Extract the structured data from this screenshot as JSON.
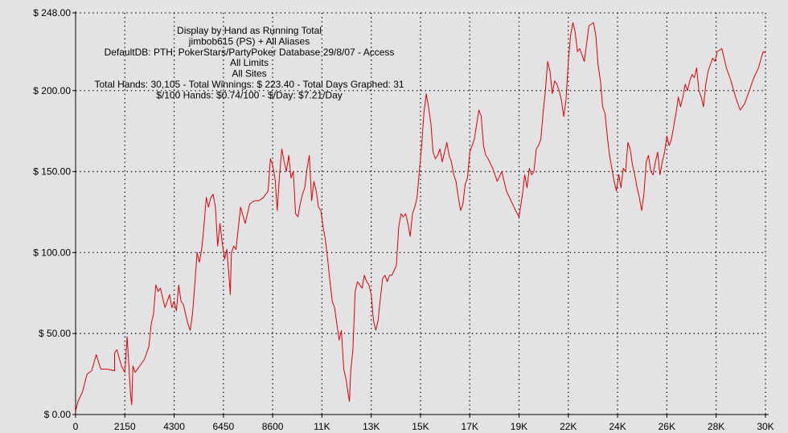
{
  "chart_data": {
    "type": "line",
    "title_lines": [
      "Display by Hand as Running Total",
      "jimbob615 (PS) + All Aliases",
      "DefaultDB: PTH: PokerStars/PartyPoker Database 29/8/07 - Access",
      "All Limits",
      "All Sites",
      "Total Hands: 30,105 - Total Winnings: $ 223.40 - Total Days Graphed: 31",
      "$/100 Hands: $0.74/100 - $/Day: $7.21/Day"
    ],
    "xlabel": "",
    "ylabel": "",
    "xlim": [
      0,
      30105
    ],
    "ylim": [
      0,
      248
    ],
    "x_ticks": [
      {
        "value": 0,
        "label": "0"
      },
      {
        "value": 2150,
        "label": "2150"
      },
      {
        "value": 4300,
        "label": "4300"
      },
      {
        "value": 6450,
        "label": "6450"
      },
      {
        "value": 8600,
        "label": "8600"
      },
      {
        "value": 10750,
        "label": "11K"
      },
      {
        "value": 12900,
        "label": "13K"
      },
      {
        "value": 15050,
        "label": "15K"
      },
      {
        "value": 17200,
        "label": "17K"
      },
      {
        "value": 19350,
        "label": "19K"
      },
      {
        "value": 21500,
        "label": "22K"
      },
      {
        "value": 23650,
        "label": "24K"
      },
      {
        "value": 25800,
        "label": "26K"
      },
      {
        "value": 27950,
        "label": "28K"
      },
      {
        "value": 30105,
        "label": "30K"
      }
    ],
    "y_ticks": [
      {
        "value": 0,
        "label": "$ 0.00"
      },
      {
        "value": 50,
        "label": "$ 50.00"
      },
      {
        "value": 100,
        "label": "$ 100.00"
      },
      {
        "value": 150,
        "label": "$ 150.00"
      },
      {
        "value": 200,
        "label": "$ 200.00"
      },
      {
        "value": 248,
        "label": "$ 248.00"
      }
    ],
    "grid": true,
    "series": [
      {
        "color": "#e00000",
        "points": [
          [
            0,
            2
          ],
          [
            100,
            8
          ],
          [
            300,
            14
          ],
          [
            500,
            25
          ],
          [
            700,
            27
          ],
          [
            900,
            37
          ],
          [
            1100,
            28
          ],
          [
            1400,
            28
          ],
          [
            1700,
            27
          ],
          [
            1700,
            38
          ],
          [
            1800,
            40
          ],
          [
            2000,
            30
          ],
          [
            2150,
            26
          ],
          [
            2250,
            48
          ],
          [
            2300,
            36
          ],
          [
            2400,
            12
          ],
          [
            2450,
            6
          ],
          [
            2500,
            30
          ],
          [
            2600,
            26
          ],
          [
            2800,
            30
          ],
          [
            3000,
            34
          ],
          [
            3200,
            42
          ],
          [
            3300,
            56
          ],
          [
            3400,
            62
          ],
          [
            3500,
            80
          ],
          [
            3600,
            76
          ],
          [
            3700,
            78
          ],
          [
            3800,
            72
          ],
          [
            3900,
            66
          ],
          [
            4000,
            70
          ],
          [
            4100,
            74
          ],
          [
            4200,
            66
          ],
          [
            4300,
            70
          ],
          [
            4400,
            64
          ],
          [
            4500,
            80
          ],
          [
            4600,
            70
          ],
          [
            4700,
            68
          ],
          [
            4800,
            62
          ],
          [
            4900,
            56
          ],
          [
            5000,
            52
          ],
          [
            5100,
            62
          ],
          [
            5200,
            80
          ],
          [
            5300,
            100
          ],
          [
            5400,
            94
          ],
          [
            5500,
            102
          ],
          [
            5600,
            116
          ],
          [
            5700,
            134
          ],
          [
            5800,
            128
          ],
          [
            5900,
            134
          ],
          [
            6000,
            136
          ],
          [
            6100,
            128
          ],
          [
            6200,
            104
          ],
          [
            6300,
            118
          ],
          [
            6400,
            106
          ],
          [
            6500,
            96
          ],
          [
            6600,
            102
          ],
          [
            6700,
            84
          ],
          [
            6750,
            74
          ],
          [
            6800,
            100
          ],
          [
            6900,
            104
          ],
          [
            7000,
            102
          ],
          [
            7200,
            128
          ],
          [
            7400,
            118
          ],
          [
            7600,
            130
          ],
          [
            7800,
            132
          ],
          [
            8000,
            132
          ],
          [
            8200,
            134
          ],
          [
            8400,
            138
          ],
          [
            8500,
            158
          ],
          [
            8600,
            154
          ],
          [
            8700,
            146
          ],
          [
            8800,
            126
          ],
          [
            8900,
            148
          ],
          [
            9000,
            164
          ],
          [
            9100,
            156
          ],
          [
            9200,
            150
          ],
          [
            9300,
            160
          ],
          [
            9400,
            146
          ],
          [
            9500,
            150
          ],
          [
            9600,
            124
          ],
          [
            9700,
            122
          ],
          [
            9800,
            130
          ],
          [
            9900,
            136
          ],
          [
            10000,
            140
          ],
          [
            10100,
            152
          ],
          [
            10200,
            160
          ],
          [
            10300,
            132
          ],
          [
            10400,
            144
          ],
          [
            10500,
            138
          ],
          [
            10600,
            128
          ],
          [
            10700,
            126
          ],
          [
            10800,
            116
          ],
          [
            10900,
            108
          ],
          [
            11000,
            96
          ],
          [
            11100,
            82
          ],
          [
            11200,
            70
          ],
          [
            11300,
            66
          ],
          [
            11400,
            56
          ],
          [
            11500,
            46
          ],
          [
            11600,
            52
          ],
          [
            11700,
            28
          ],
          [
            11800,
            22
          ],
          [
            11900,
            12
          ],
          [
            11950,
            8
          ],
          [
            12000,
            26
          ],
          [
            12100,
            40
          ],
          [
            12200,
            76
          ],
          [
            12300,
            82
          ],
          [
            12400,
            80
          ],
          [
            12500,
            78
          ],
          [
            12600,
            86
          ],
          [
            12700,
            82
          ],
          [
            12800,
            80
          ],
          [
            12900,
            74
          ],
          [
            13000,
            58
          ],
          [
            13100,
            52
          ],
          [
            13200,
            58
          ],
          [
            13300,
            72
          ],
          [
            13400,
            84
          ],
          [
            13500,
            86
          ],
          [
            13600,
            82
          ],
          [
            13700,
            86
          ],
          [
            13800,
            86
          ],
          [
            14000,
            92
          ],
          [
            14100,
            116
          ],
          [
            14200,
            124
          ],
          [
            14300,
            122
          ],
          [
            14400,
            124
          ],
          [
            14500,
            118
          ],
          [
            14600,
            110
          ],
          [
            14700,
            124
          ],
          [
            14800,
            128
          ],
          [
            14900,
            134
          ],
          [
            15000,
            150
          ],
          [
            15100,
            166
          ],
          [
            15200,
            186
          ],
          [
            15300,
            198
          ],
          [
            15400,
            190
          ],
          [
            15500,
            180
          ],
          [
            15600,
            162
          ],
          [
            15700,
            158
          ],
          [
            15800,
            160
          ],
          [
            15900,
            164
          ],
          [
            16000,
            156
          ],
          [
            16100,
            162
          ],
          [
            16200,
            168
          ],
          [
            16300,
            160
          ],
          [
            16400,
            156
          ],
          [
            16500,
            148
          ],
          [
            16600,
            144
          ],
          [
            16700,
            134
          ],
          [
            16800,
            126
          ],
          [
            16900,
            130
          ],
          [
            17000,
            142
          ],
          [
            17100,
            146
          ],
          [
            17200,
            162
          ],
          [
            17400,
            170
          ],
          [
            17600,
            188
          ],
          [
            17700,
            184
          ],
          [
            17800,
            166
          ],
          [
            17900,
            160
          ],
          [
            18000,
            158
          ],
          [
            18200,
            152
          ],
          [
            18400,
            144
          ],
          [
            18600,
            150
          ],
          [
            18800,
            138
          ],
          [
            19000,
            132
          ],
          [
            19200,
            126
          ],
          [
            19350,
            122
          ],
          [
            19500,
            136
          ],
          [
            19600,
            148
          ],
          [
            19700,
            140
          ],
          [
            19800,
            152
          ],
          [
            19900,
            148
          ],
          [
            20000,
            150
          ],
          [
            20100,
            164
          ],
          [
            20200,
            166
          ],
          [
            20300,
            170
          ],
          [
            20400,
            186
          ],
          [
            20500,
            200
          ],
          [
            20600,
            218
          ],
          [
            20700,
            212
          ],
          [
            20800,
            198
          ],
          [
            20900,
            206
          ],
          [
            21000,
            204
          ],
          [
            21100,
            200
          ],
          [
            21200,
            194
          ],
          [
            21300,
            184
          ],
          [
            21400,
            194
          ],
          [
            21500,
            218
          ],
          [
            21600,
            234
          ],
          [
            21700,
            242
          ],
          [
            21800,
            236
          ],
          [
            21900,
            224
          ],
          [
            22000,
            226
          ],
          [
            22200,
            218
          ],
          [
            22400,
            240
          ],
          [
            22600,
            242
          ],
          [
            22700,
            234
          ],
          [
            22800,
            216
          ],
          [
            22900,
            206
          ],
          [
            23000,
            190
          ],
          [
            23100,
            186
          ],
          [
            23200,
            172
          ],
          [
            23300,
            160
          ],
          [
            23400,
            152
          ],
          [
            23500,
            144
          ],
          [
            23600,
            138
          ],
          [
            23700,
            148
          ],
          [
            23800,
            140
          ],
          [
            23900,
            152
          ],
          [
            24000,
            150
          ],
          [
            24100,
            168
          ],
          [
            24200,
            164
          ],
          [
            24300,
            154
          ],
          [
            24400,
            148
          ],
          [
            24500,
            140
          ],
          [
            24600,
            134
          ],
          [
            24700,
            126
          ],
          [
            24800,
            136
          ],
          [
            24900,
            156
          ],
          [
            25000,
            160
          ],
          [
            25100,
            150
          ],
          [
            25200,
            148
          ],
          [
            25300,
            156
          ],
          [
            25400,
            162
          ],
          [
            25500,
            148
          ],
          [
            25600,
            156
          ],
          [
            25700,
            162
          ],
          [
            25800,
            172
          ],
          [
            25900,
            166
          ],
          [
            26000,
            170
          ],
          [
            26100,
            178
          ],
          [
            26200,
            186
          ],
          [
            26300,
            196
          ],
          [
            26400,
            190
          ],
          [
            26500,
            196
          ],
          [
            26600,
            204
          ],
          [
            26700,
            200
          ],
          [
            26800,
            206
          ],
          [
            26900,
            210
          ],
          [
            27000,
            208
          ],
          [
            27100,
            214
          ],
          [
            27200,
            200
          ],
          [
            27300,
            196
          ],
          [
            27400,
            190
          ],
          [
            27500,
            204
          ],
          [
            27600,
            212
          ],
          [
            27700,
            216
          ],
          [
            27800,
            220
          ],
          [
            27900,
            218
          ],
          [
            28000,
            224
          ],
          [
            28200,
            226
          ],
          [
            28400,
            214
          ],
          [
            28600,
            206
          ],
          [
            28800,
            196
          ],
          [
            29000,
            188
          ],
          [
            29200,
            192
          ],
          [
            29400,
            200
          ],
          [
            29600,
            208
          ],
          [
            29800,
            214
          ],
          [
            30000,
            224
          ],
          [
            30105,
            223.4
          ]
        ]
      }
    ]
  }
}
